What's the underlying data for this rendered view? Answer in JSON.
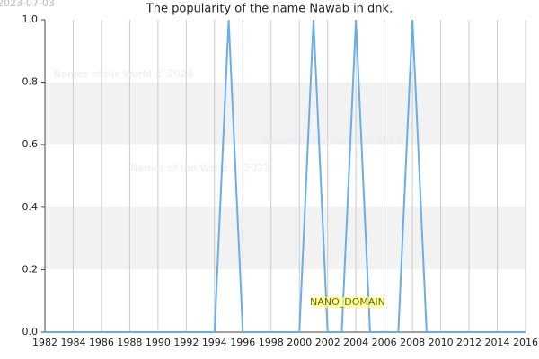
{
  "chart_data": {
    "type": "line",
    "title": "The popularity of the name Nawab in dnk.",
    "date": "2023-07-03",
    "watermarks": [
      "Names of the World © 2024",
      "Names of the World © 2023",
      "Names of the World © 2023"
    ],
    "label": "NANO_DOMAIN",
    "x": [
      1982,
      1983,
      1984,
      1985,
      1986,
      1987,
      1988,
      1989,
      1990,
      1991,
      1992,
      1993,
      1994,
      1995,
      1996,
      1997,
      1998,
      1999,
      2000,
      2001,
      2002,
      2003,
      2004,
      2005,
      2006,
      2007,
      2008,
      2009,
      2010,
      2011,
      2012,
      2013,
      2014,
      2015,
      2016
    ],
    "values": [
      0,
      0,
      0,
      0,
      0,
      0,
      0,
      0,
      0,
      0,
      0,
      0,
      0,
      1,
      0,
      0,
      0,
      0,
      0,
      1,
      0,
      0,
      1,
      0,
      0,
      0,
      1,
      0,
      0,
      0,
      0,
      0,
      0,
      0,
      0
    ],
    "color": "#6aaee8",
    "xlim": [
      1982,
      2016
    ],
    "xticks": [
      1982,
      1984,
      1986,
      1988,
      1990,
      1992,
      1994,
      1996,
      1998,
      2000,
      2002,
      2004,
      2006,
      2008,
      2010,
      2012,
      2014,
      2016
    ],
    "ylim": [
      0,
      1
    ],
    "yticks": [
      {
        "value": 0,
        "label": "0.0"
      },
      0.2,
      0.4,
      0.6,
      0.8,
      {
        "value": 1,
        "label": "1.0"
      }
    ],
    "grid": true
  }
}
